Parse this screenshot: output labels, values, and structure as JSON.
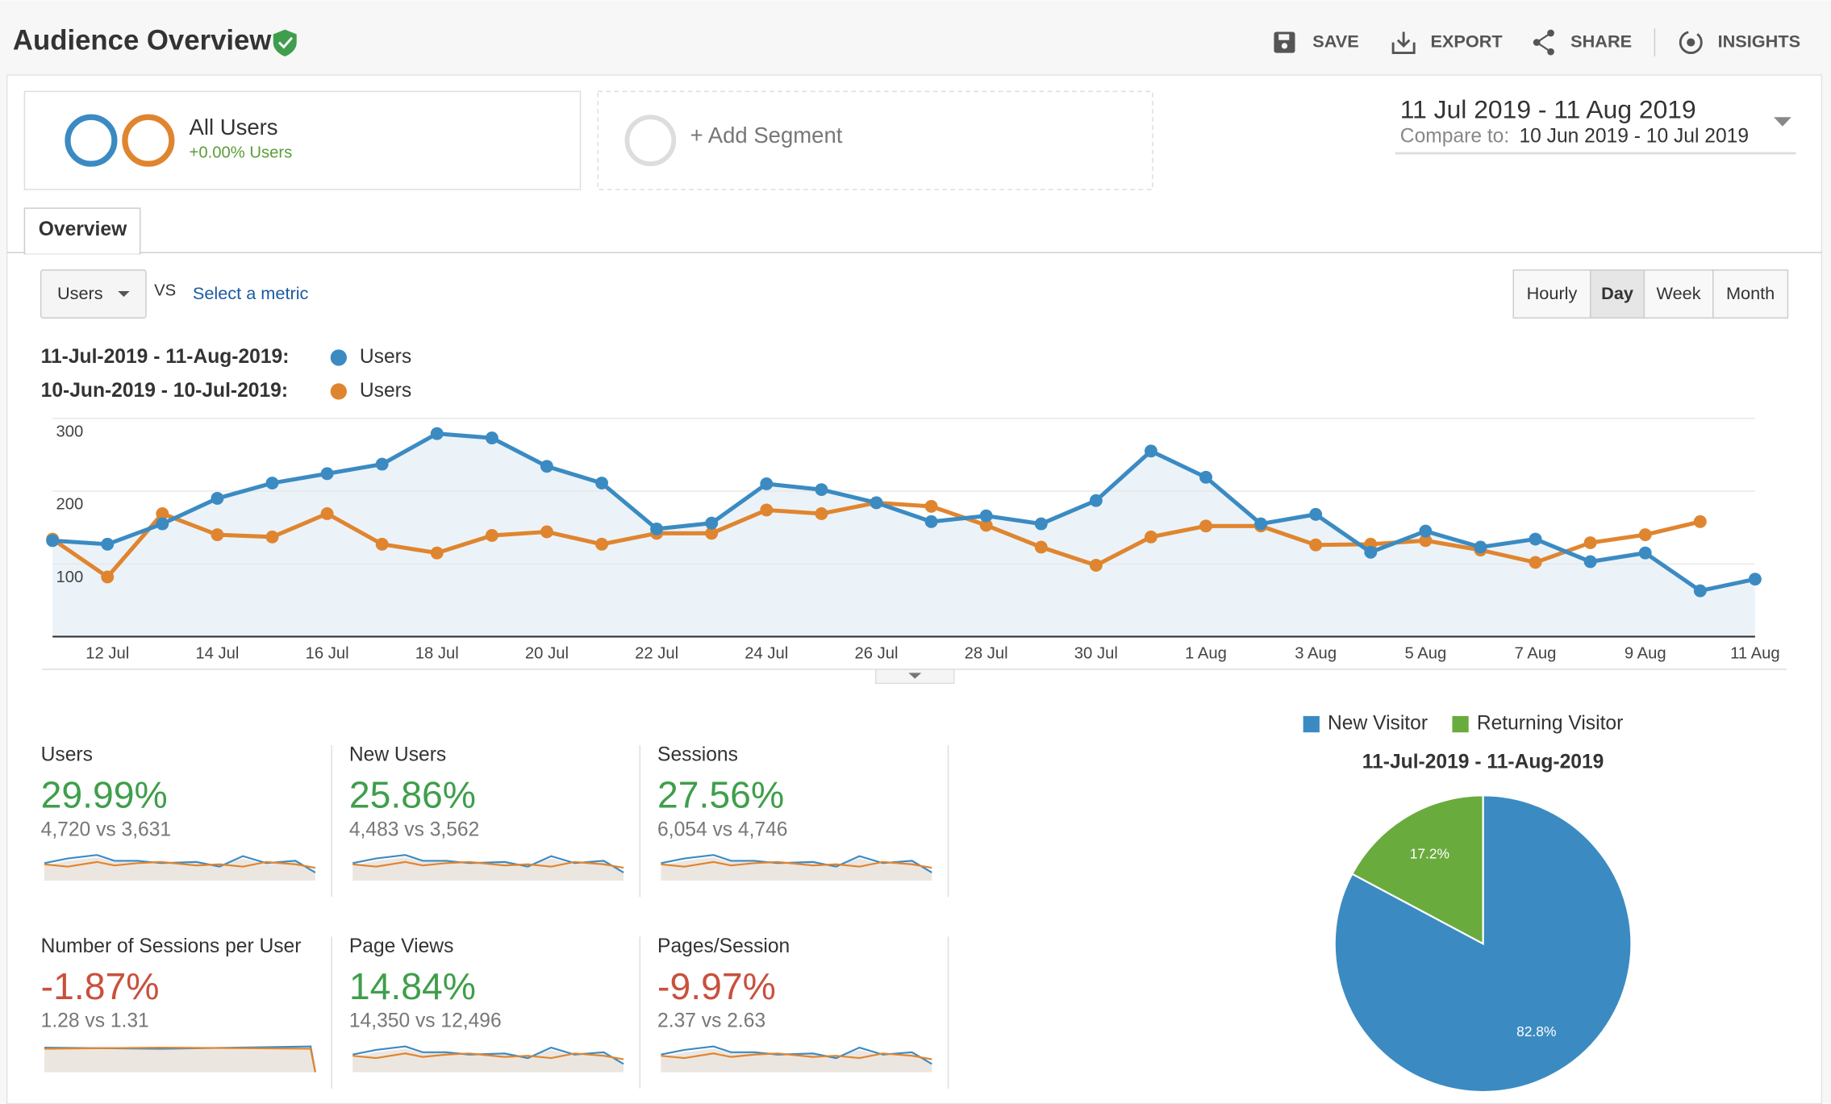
{
  "header": {
    "title": "Audience Overview",
    "actions": [
      "SAVE",
      "EXPORT",
      "SHARE",
      "INSIGHTS"
    ]
  },
  "segments": {
    "name": "All Users",
    "change": "+0.00% Users",
    "add": "+ Add Segment"
  },
  "date_range": {
    "range": "11 Jul 2019 - 11 Aug 2019",
    "compare_label": "Compare to:",
    "compare_range": "10 Jun 2019 - 10 Jul 2019"
  },
  "tabs": [
    "Overview"
  ],
  "controls": {
    "metric": "Users",
    "vs": "VS",
    "select": "Select a metric",
    "granularity": [
      "Hourly",
      "Day",
      "Week",
      "Month"
    ],
    "selected_index": 1
  },
  "chart_data": [
    {
      "type": "line",
      "categories": [
        null,
        "12 Jul",
        null,
        "14 Jul",
        null,
        "16 Jul",
        null,
        "18 Jul",
        null,
        "20 Jul",
        null,
        "22 Jul",
        null,
        "24 Jul",
        null,
        "26 Jul",
        null,
        "28 Jul",
        null,
        "30 Jul",
        null,
        "1 Aug",
        null,
        "3 Aug",
        null,
        "5 Aug",
        null,
        "7 Aug",
        null,
        "9 Aug",
        null,
        "11 Aug"
      ],
      "series": [
        {
          "name": "Users",
          "period": "11-Jul-2019 - 11-Aug-2019:",
          "color": "#3b8bc2",
          "values": [
            132,
            127,
            155,
            190,
            211,
            224,
            237,
            279,
            273,
            234,
            211,
            148,
            156,
            210,
            202,
            184,
            158,
            166,
            155,
            187,
            255,
            219,
            155,
            168,
            116,
            145,
            123,
            134,
            103,
            115,
            63,
            79
          ]
        },
        {
          "name": "Users",
          "period": "10-Jun-2019 - 10-Jul-2019:",
          "color": "#e0852f",
          "values": [
            134,
            82,
            169,
            140,
            137,
            169,
            127,
            115,
            139,
            144,
            127,
            142,
            142,
            174,
            169,
            184,
            179,
            153,
            123,
            98,
            137,
            152,
            152,
            126,
            127,
            132,
            119,
            102,
            129,
            140,
            158,
            null
          ]
        }
      ],
      "ylim": [
        0,
        300
      ],
      "yticks": [
        100,
        200,
        300
      ],
      "grid": true,
      "area": true
    },
    {
      "type": "pie",
      "title": "11-Jul-2019 - 11-Aug-2019",
      "categories": [
        "New Visitor",
        "Returning Visitor"
      ],
      "values": [
        82.8,
        17.2
      ],
      "value_labels": [
        "82.8%",
        "17.2%"
      ],
      "colors": [
        "#3b8bc2",
        "#6aab3e"
      ]
    }
  ],
  "metrics": [
    {
      "name": "Users",
      "change": "29.99%",
      "comparison": "4,720 vs 3,631",
      "color": "#3f9e4b"
    },
    {
      "name": "New Users",
      "change": "25.86%",
      "comparison": "4,483 vs 3,562",
      "color": "#3f9e4b"
    },
    {
      "name": "Sessions",
      "change": "27.56%",
      "comparison": "6,054 vs 4,746",
      "color": "#3f9e4b"
    },
    {
      "name": "Number of Sessions per User",
      "change": "-1.87%",
      "comparison": "1.28 vs 1.31",
      "color": "#c9503e"
    },
    {
      "name": "Page Views",
      "change": "14.84%",
      "comparison": "14,350 vs 12,496",
      "color": "#3f9e4b"
    },
    {
      "name": "Pages/Session",
      "change": "-9.97%",
      "comparison": "2.37 vs 2.63",
      "color": "#c9503e"
    }
  ]
}
